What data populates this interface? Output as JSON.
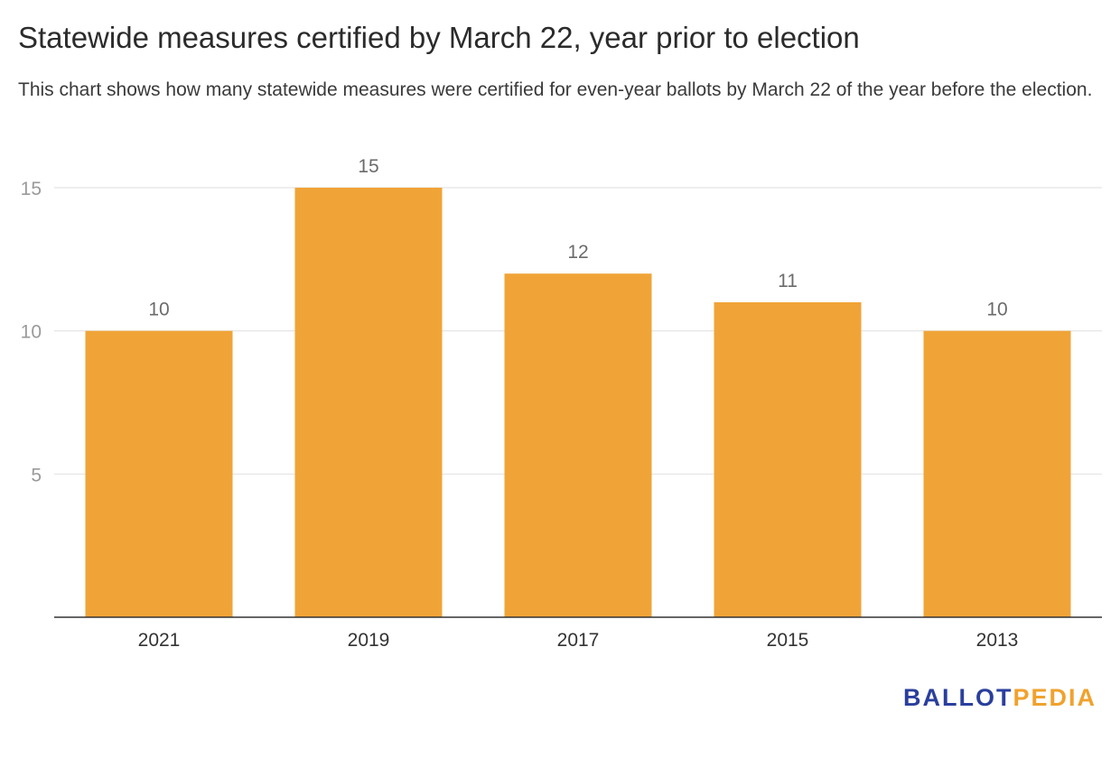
{
  "chart_data": {
    "type": "bar",
    "title": "Statewide measures certified by March 22, year prior to election",
    "subtitle": "This chart shows how many statewide measures were certified for even-year ballots by March 22 of the year before the election.",
    "categories": [
      "2021",
      "2019",
      "2017",
      "2015",
      "2013"
    ],
    "values": [
      10,
      15,
      12,
      11,
      10
    ],
    "data_labels": [
      "10",
      "15",
      "12",
      "11",
      "10"
    ],
    "xlabel": "",
    "ylabel": "",
    "ylim": [
      0,
      15
    ],
    "yticks": [
      5,
      10,
      15
    ],
    "ytick_labels": [
      "5",
      "10",
      "15"
    ],
    "grid": true,
    "legend": "none",
    "colors": {
      "bar": "#F0A437",
      "grid": "#e3e3e3",
      "axis": "#333333",
      "tick_label": "#9a9a9a",
      "data_label": "#6b6b6b",
      "category_label": "#333333"
    }
  },
  "logo": {
    "part1": "BALLOT",
    "part2": "PEDIA",
    "color1": "#2a3f9d",
    "color2": "#f0a22e"
  }
}
